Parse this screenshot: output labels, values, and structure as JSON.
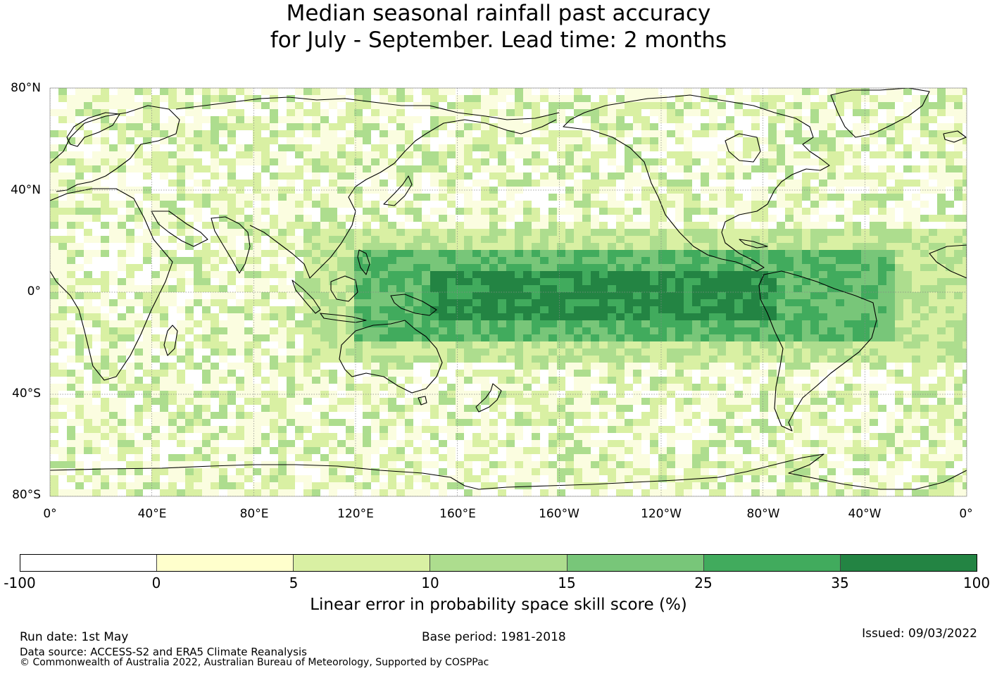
{
  "title": {
    "line1": "Median seasonal rainfall past accuracy",
    "line2": "for July - September. Lead time: 2 months"
  },
  "map": {
    "lat_labels": [
      "80°N",
      "40°N",
      "0°",
      "40°S",
      "80°S"
    ],
    "lon_labels": [
      "0°",
      "40°E",
      "80°E",
      "120°E",
      "160°E",
      "160°W",
      "120°W",
      "80°W",
      "40°W",
      "0°"
    ]
  },
  "colorbar": {
    "label": "Linear error in probability space skill score (%)",
    "ticks": [
      "-100",
      "0",
      "5",
      "10",
      "15",
      "25",
      "35",
      "100"
    ],
    "colors": [
      "#ffffff",
      "#ffffcc",
      "#d9f0a3",
      "#addd8e",
      "#78c679",
      "#41ab5d",
      "#238443"
    ]
  },
  "footer": {
    "run_date": "Run date: 1st May",
    "base_period": "Base period: 1981-2018",
    "issued": "Issued: 09/03/2022",
    "data_source": "Data source: ACCESS-S2 and ERA5 Climate Reanalysis",
    "copyright": "© Commonwealth of Australia 2022, Australian Bureau of Meteorology, Supported by COSPPac"
  }
}
